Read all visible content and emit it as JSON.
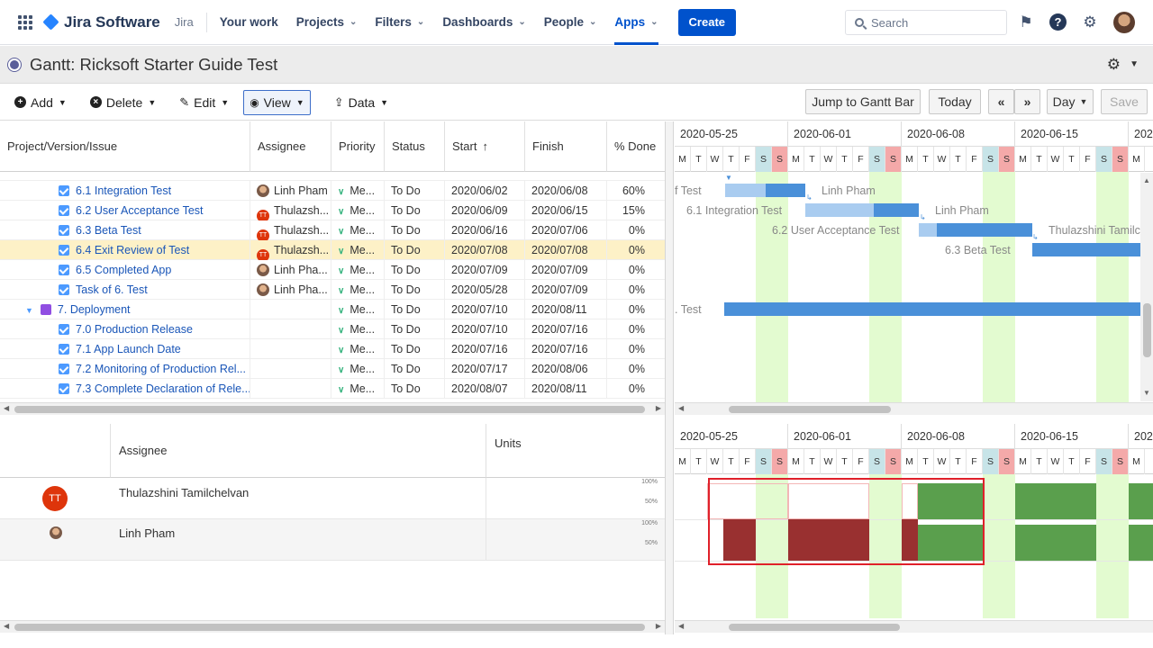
{
  "topnav": {
    "brand": "Jira Software",
    "product": "Jira",
    "items": [
      {
        "label": "Your work",
        "chev": false
      },
      {
        "label": "Projects",
        "chev": true
      },
      {
        "label": "Filters",
        "chev": true
      },
      {
        "label": "Dashboards",
        "chev": true
      },
      {
        "label": "People",
        "chev": true
      },
      {
        "label": "Apps",
        "chev": true,
        "active": true
      }
    ],
    "create_label": "Create",
    "search_placeholder": "Search"
  },
  "title": "Gantt:  Ricksoft Starter Guide Test",
  "toolbar": {
    "add": "Add",
    "delete": "Delete",
    "edit": "Edit",
    "view": "View",
    "data": "Data",
    "jump": "Jump to Gantt Bar",
    "today": "Today",
    "prev": "«",
    "next": "»",
    "scale": "Day",
    "save": "Save"
  },
  "grid": {
    "columns": [
      "Project/Version/Issue",
      "Assignee",
      "Priority",
      "Status",
      "Start",
      "Finish",
      "% Done"
    ],
    "sort_icon": "↑",
    "rows": [
      {
        "name": "6.1 Integration Test",
        "assignee": "Linh Pham",
        "avatar": "photo",
        "priority": "Me...",
        "status": "To Do",
        "start": "2020/06/02",
        "finish": "2020/06/08",
        "done": "60%"
      },
      {
        "name": "6.2 User Acceptance Test",
        "assignee": "Thulazsh...",
        "avatar": "TT",
        "priority": "Me...",
        "status": "To Do",
        "start": "2020/06/09",
        "finish": "2020/06/15",
        "done": "15%"
      },
      {
        "name": "6.3 Beta Test",
        "assignee": "Thulazsh...",
        "avatar": "TT",
        "priority": "Me...",
        "status": "To Do",
        "start": "2020/06/16",
        "finish": "2020/07/06",
        "done": "0%"
      },
      {
        "name": "6.4 Exit Review of Test",
        "assignee": "Thulazsh...",
        "avatar": "TT",
        "priority": "Me...",
        "status": "To Do",
        "start": "2020/07/08",
        "finish": "2020/07/08",
        "done": "0%",
        "selected": true
      },
      {
        "name": "6.5 Completed App",
        "assignee": "Linh Pha...",
        "avatar": "photo",
        "priority": "Me...",
        "status": "To Do",
        "start": "2020/07/09",
        "finish": "2020/07/09",
        "done": "0%"
      },
      {
        "name": "Task of 6. Test",
        "assignee": "Linh Pha...",
        "avatar": "photo",
        "priority": "Me...",
        "status": "To Do",
        "start": "2020/05/28",
        "finish": "2020/07/09",
        "done": "0%"
      },
      {
        "name": "7. Deployment",
        "assignee": "",
        "avatar": "",
        "priority": "Me...",
        "status": "To Do",
        "start": "2020/07/10",
        "finish": "2020/08/11",
        "done": "0%",
        "epic": true
      },
      {
        "name": "7.0 Production Release",
        "assignee": "",
        "avatar": "",
        "priority": "Me...",
        "status": "To Do",
        "start": "2020/07/10",
        "finish": "2020/07/16",
        "done": "0%"
      },
      {
        "name": "7.1 App Launch Date",
        "assignee": "",
        "avatar": "",
        "priority": "Me...",
        "status": "To Do",
        "start": "2020/07/16",
        "finish": "2020/07/16",
        "done": "0%"
      },
      {
        "name": "7.2 Monitoring of Production Rel...",
        "assignee": "",
        "avatar": "",
        "priority": "Me...",
        "status": "To Do",
        "start": "2020/07/17",
        "finish": "2020/08/06",
        "done": "0%"
      },
      {
        "name": "7.3 Complete Declaration of Rele...",
        "assignee": "",
        "avatar": "",
        "priority": "Me...",
        "status": "To Do",
        "start": "2020/08/07",
        "finish": "2020/08/11",
        "done": "0%"
      }
    ]
  },
  "timeline": {
    "weeks": [
      "2020-05-25",
      "2020-06-01",
      "2020-06-08",
      "2020-06-15",
      "202"
    ],
    "days": [
      "M",
      "T",
      "W",
      "T",
      "F",
      "S",
      "S",
      "M",
      "T",
      "W",
      "T",
      "F",
      "S",
      "S",
      "M",
      "T",
      "W",
      "T",
      "F",
      "S",
      "S",
      "M",
      "T",
      "W",
      "T",
      "F",
      "S",
      "S",
      "M"
    ]
  },
  "gantt_labels": {
    "r0_left": "f Test",
    "r0_right": "Linh Pham",
    "r1_left": "6.1 Integration Test",
    "r1_right": "Linh Pham",
    "r2_left": "6.2 User Acceptance Test",
    "r2_right": "Thulazshini Tamilc",
    "r3_left": "6.3 Beta Test",
    "r6_left": ". Test"
  },
  "resource": {
    "columns": [
      "Assignee",
      "Units"
    ],
    "people": [
      {
        "name": "Thulazshini Tamilchelvan",
        "initials": "TT"
      },
      {
        "name": "Linh Pham"
      }
    ],
    "pct_100": "100%",
    "pct_50": "50%",
    "colors": {
      "overload": "#993030",
      "normal": "#5a9f4d",
      "highlight": "#e0202a"
    }
  }
}
